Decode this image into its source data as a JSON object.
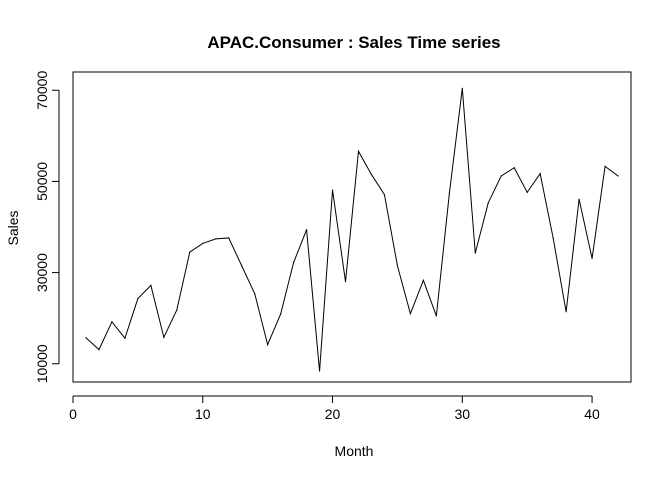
{
  "chart_data": {
    "type": "line",
    "title": "APAC.Consumer :  Sales Time series",
    "xlabel": "Month",
    "ylabel": "Sales",
    "xlim": [
      0,
      43
    ],
    "ylim": [
      6000,
      74000
    ],
    "xticks": [
      0,
      10,
      20,
      30,
      40
    ],
    "yticks": [
      10000,
      30000,
      50000,
      70000
    ],
    "grid": false,
    "legend": "none",
    "line_color": "#000000",
    "series": [
      {
        "x": [
          1,
          2,
          3,
          4,
          5,
          6,
          7,
          8,
          9,
          10,
          11,
          12,
          13,
          14,
          15,
          16,
          17,
          18,
          19,
          20,
          21,
          22,
          23,
          24,
          25,
          26,
          27,
          28,
          29,
          30,
          31,
          32,
          33,
          34,
          35,
          36,
          37,
          38,
          39,
          40,
          41,
          42
        ],
        "values": [
          15700,
          13100,
          19200,
          15600,
          24300,
          27200,
          15800,
          21800,
          34500,
          36400,
          37400,
          37600,
          31500,
          25400,
          14200,
          20900,
          32200,
          39400,
          8400,
          48100,
          28000,
          56600,
          51500,
          47100,
          31500,
          21000,
          28300,
          20500,
          47300,
          70400,
          34300,
          45300,
          51200,
          53000,
          47600,
          51700,
          37600,
          21400,
          46100,
          33100,
          53300,
          51200
        ]
      }
    ]
  }
}
